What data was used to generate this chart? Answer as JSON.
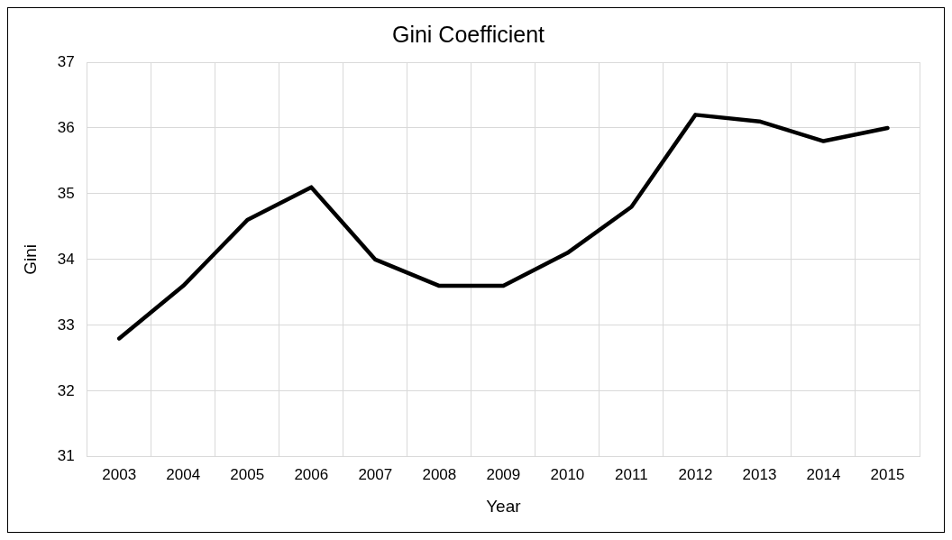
{
  "chart_data": {
    "type": "line",
    "title": "Gini Coefficient",
    "xlabel": "Year",
    "ylabel": "Gini",
    "categories": [
      "2003",
      "2004",
      "2005",
      "2006",
      "2007",
      "2008",
      "2009",
      "2010",
      "2011",
      "2012",
      "2013",
      "2014",
      "2015"
    ],
    "series": [
      {
        "color": "#000000",
        "values": [
          32.8,
          33.6,
          34.6,
          35.1,
          34.0,
          33.6,
          33.6,
          34.1,
          34.8,
          36.2,
          36.1,
          35.8,
          36.0
        ]
      }
    ],
    "ylim": [
      31,
      37
    ],
    "yticks": [
      31,
      32,
      33,
      34,
      35,
      36,
      37
    ],
    "grid": true,
    "legend": false,
    "marker": "none",
    "line_style": "solid"
  }
}
